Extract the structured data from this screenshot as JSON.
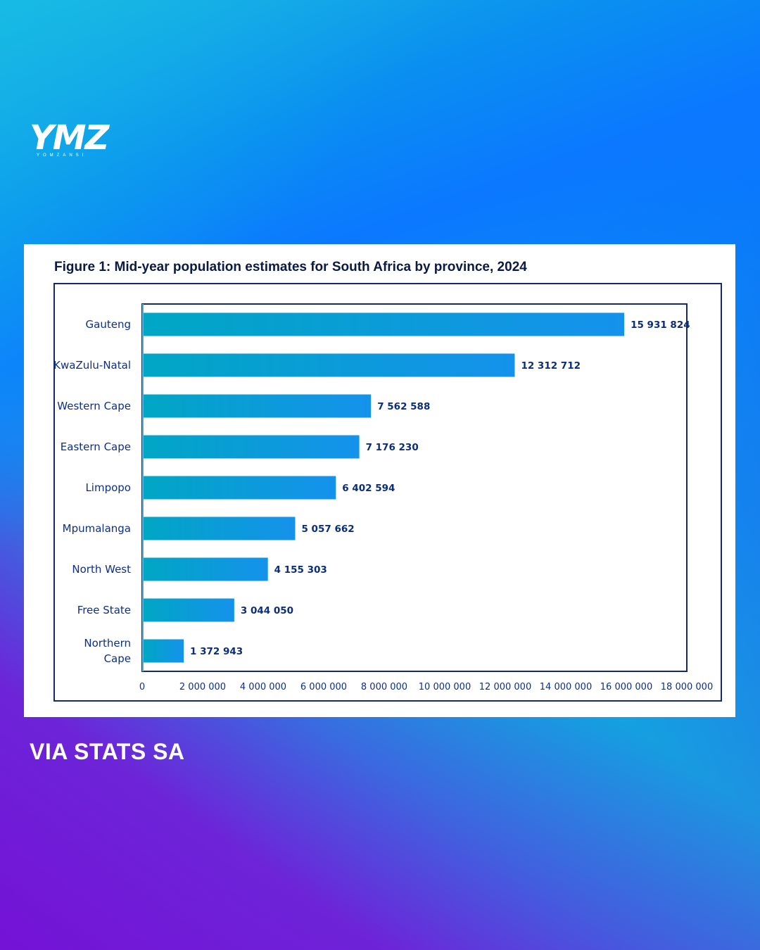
{
  "brand": {
    "logo_text": "YMZ",
    "logo_subtext": "YOMZANSI"
  },
  "source_label": "VIA STATS SA",
  "colors": {
    "bar_start": "#00a6c4",
    "bar_end": "#1592ec",
    "label": "#0b2f8a",
    "value_label": "#0a2e7a",
    "axis": "#162a6b"
  },
  "chart_data": {
    "type": "bar",
    "orientation": "horizontal",
    "title": "Figure 1: Mid-year population estimates for South Africa by province, 2024",
    "categories": [
      "Gauteng",
      "KwaZulu-Natal",
      "Western Cape",
      "Eastern Cape",
      "Limpopo",
      "Mpumalanga",
      "North West",
      "Free State",
      "Northern Cape"
    ],
    "values": [
      15931824,
      12312712,
      7562588,
      7176230,
      6402594,
      5057662,
      4155303,
      3044050,
      1372943
    ],
    "value_labels": [
      "15 931 824",
      "12 312 712",
      "7 562 588",
      "7 176 230",
      "6 402 594",
      "5 057 662",
      "4 155 303",
      "3 044 050",
      "1 372 943"
    ],
    "xlim": [
      0,
      18000000
    ],
    "xticks": [
      0,
      2000000,
      4000000,
      6000000,
      8000000,
      10000000,
      12000000,
      14000000,
      16000000,
      18000000
    ],
    "xtick_labels": [
      "0",
      "2 000 000",
      "4 000 000",
      "6 000 000",
      "8 000 000",
      "10 000 000",
      "12 000 000",
      "14 000 000",
      "16 000 000",
      "18 000 000"
    ],
    "xlabel": "",
    "ylabel": "",
    "grid": false
  }
}
